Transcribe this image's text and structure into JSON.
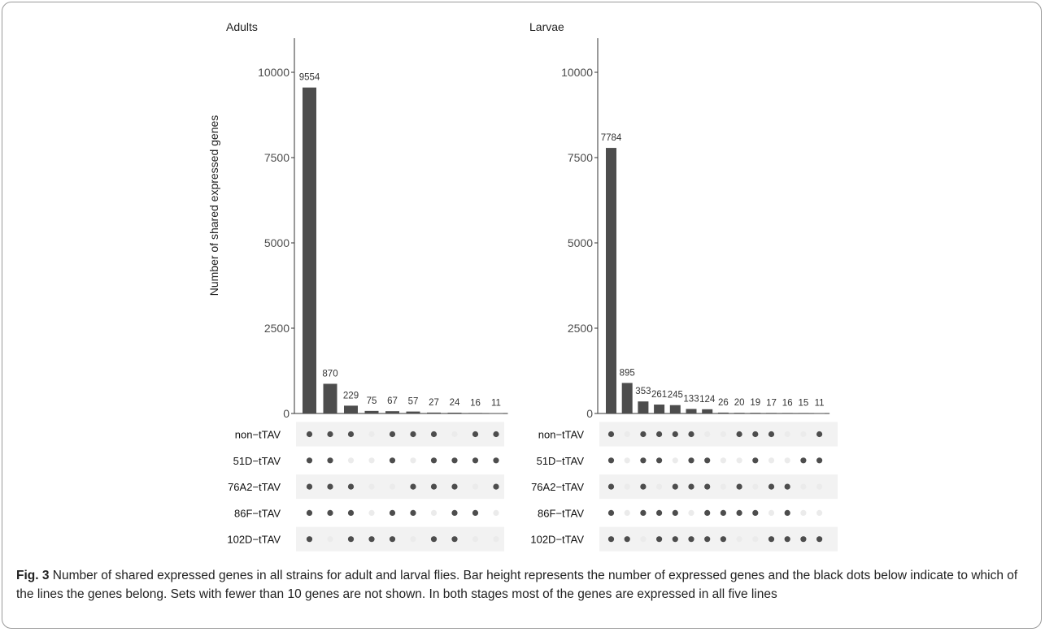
{
  "chart_data": [
    {
      "type": "bar",
      "title": "Adults",
      "ylabel": "Number of shared expressed genes",
      "xlabel": "",
      "ylim": [
        0,
        11000
      ],
      "yticks": [
        0,
        2500,
        5000,
        7500,
        10000
      ],
      "values": [
        9554,
        870,
        229,
        75,
        67,
        57,
        27,
        24,
        16,
        11
      ],
      "sets": [
        "non−tTAV",
        "51D−tTAV",
        "76A2−tTAV",
        "86F−tTAV",
        "102D−tTAV"
      ],
      "membership": [
        [
          1,
          1,
          1,
          1,
          1
        ],
        [
          1,
          1,
          1,
          1,
          0
        ],
        [
          1,
          0,
          1,
          1,
          1
        ],
        [
          0,
          0,
          0,
          0,
          1
        ],
        [
          1,
          1,
          0,
          1,
          1
        ],
        [
          1,
          0,
          1,
          1,
          0
        ],
        [
          1,
          1,
          1,
          0,
          1
        ],
        [
          0,
          1,
          1,
          1,
          1
        ],
        [
          1,
          1,
          0,
          1,
          0
        ],
        [
          1,
          1,
          1,
          0,
          0
        ]
      ],
      "bar_color": "#4d4d4d",
      "dot_on_color": "#4d4d4d",
      "dot_off_color": "#ebebeb",
      "stripe_color": "#f2f2f2"
    },
    {
      "type": "bar",
      "title": "Larvae",
      "ylabel": "",
      "xlabel": "",
      "ylim": [
        0,
        11000
      ],
      "yticks": [
        0,
        2500,
        5000,
        7500,
        10000
      ],
      "values": [
        7784,
        895,
        353,
        261,
        245,
        133,
        124,
        26,
        20,
        19,
        17,
        16,
        15,
        11
      ],
      "sets": [
        "non−tTAV",
        "51D−tTAV",
        "76A2−tTAV",
        "86F−tTAV",
        "102D−tTAV"
      ],
      "membership": [
        [
          1,
          1,
          1,
          1,
          1
        ],
        [
          0,
          0,
          0,
          0,
          1
        ],
        [
          1,
          1,
          1,
          1,
          0
        ],
        [
          1,
          1,
          0,
          1,
          1
        ],
        [
          1,
          0,
          1,
          1,
          1
        ],
        [
          1,
          1,
          1,
          0,
          1
        ],
        [
          0,
          1,
          1,
          1,
          1
        ],
        [
          0,
          0,
          0,
          1,
          1
        ],
        [
          1,
          0,
          1,
          1,
          0
        ],
        [
          1,
          1,
          0,
          1,
          0
        ],
        [
          1,
          0,
          1,
          0,
          1
        ],
        [
          0,
          0,
          1,
          1,
          1
        ],
        [
          0,
          1,
          0,
          0,
          1
        ],
        [
          1,
          1,
          0,
          0,
          1
        ]
      ],
      "bar_color": "#4d4d4d",
      "dot_on_color": "#4d4d4d",
      "dot_off_color": "#ebebeb",
      "stripe_color": "#f2f2f2"
    }
  ],
  "caption": {
    "label": "Fig. 3",
    "text": " Number of shared expressed genes in all strains for adult and larval flies. Bar height represents the number of expressed genes and the black dots below indicate to which of the lines the genes belong. Sets with fewer than 10 genes are not shown. In both stages most of the genes are expressed in all five lines"
  }
}
